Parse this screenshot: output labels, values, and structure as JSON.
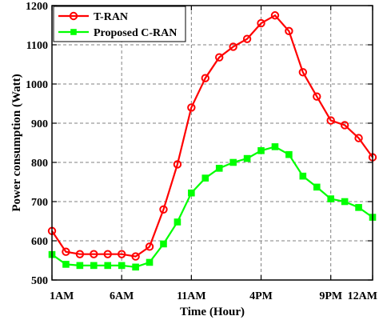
{
  "chart_data": {
    "type": "line",
    "xlabel": "Time (Hour)",
    "ylabel": "Power consumption (Watt)",
    "ylim": [
      500,
      1200
    ],
    "yticks": [
      500,
      600,
      700,
      800,
      900,
      1000,
      1100,
      1200
    ],
    "xlim": [
      1,
      24
    ],
    "xticks": [
      {
        "x": 1,
        "label": "1AM"
      },
      {
        "x": 6,
        "label": "6AM"
      },
      {
        "x": 11,
        "label": "11AM"
      },
      {
        "x": 16,
        "label": "4PM"
      },
      {
        "x": 21,
        "label": "9PM"
      },
      {
        "x": 24,
        "label": "12AM"
      }
    ],
    "grid": true,
    "legend_position": "top-left",
    "x": [
      1,
      2,
      3,
      4,
      5,
      6,
      7,
      8,
      9,
      10,
      11,
      12,
      13,
      14,
      15,
      16,
      17,
      18,
      19,
      20,
      21,
      22,
      23,
      24
    ],
    "series": [
      {
        "name": "T-RAN",
        "color": "#ff0000",
        "marker": "circle",
        "values": [
          625,
          572,
          566,
          566,
          566,
          566,
          560,
          585,
          680,
          795,
          940,
          1015,
          1068,
          1095,
          1115,
          1155,
          1175,
          1135,
          1030,
          968,
          907,
          895,
          862,
          813
        ]
      },
      {
        "name": "Proposed C-RAN",
        "color": "#00ff00",
        "marker": "square",
        "values": [
          565,
          540,
          537,
          537,
          537,
          537,
          533,
          545,
          592,
          648,
          722,
          760,
          785,
          800,
          810,
          830,
          840,
          820,
          765,
          737,
          707,
          700,
          685,
          660
        ]
      }
    ]
  }
}
